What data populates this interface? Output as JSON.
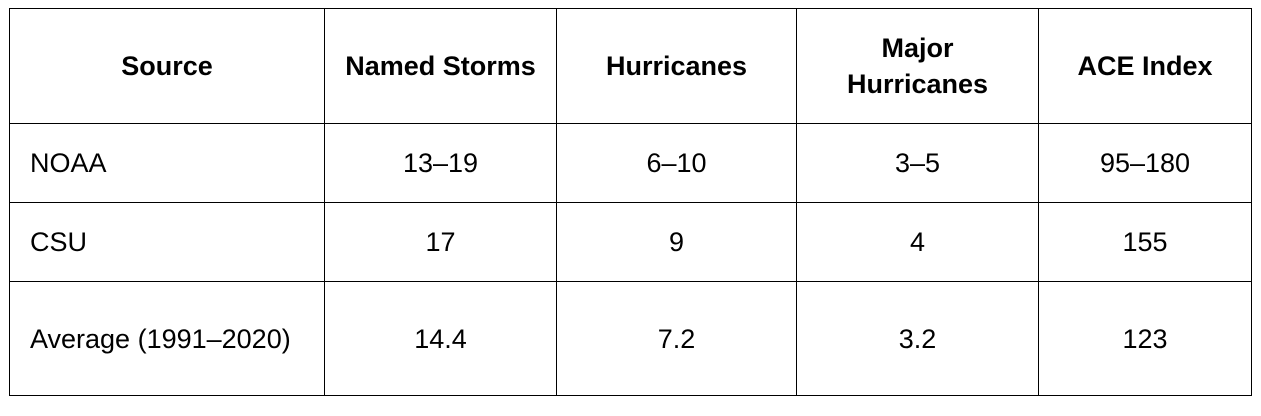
{
  "table": {
    "headers": [
      "Source",
      "Named Storms",
      "Hurricanes",
      "Major Hurricanes",
      "ACE Index"
    ],
    "rows": [
      [
        "NOAA",
        "13–19",
        "6–10",
        "3–5",
        "95–180"
      ],
      [
        "CSU",
        "17",
        "9",
        "4",
        "155"
      ],
      [
        "Average (1991–2020)",
        "14.4",
        "7.2",
        "3.2",
        "123"
      ]
    ]
  }
}
